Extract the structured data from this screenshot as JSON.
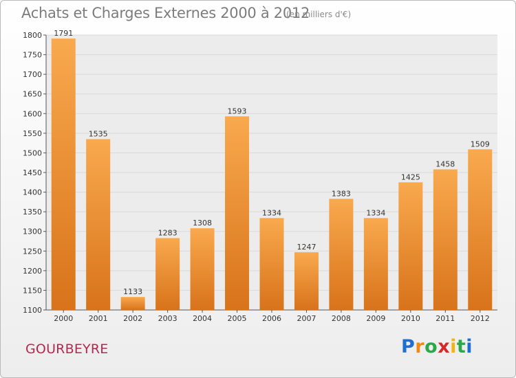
{
  "header": {
    "title": "Achats et Charges Externes 2000 à 2012",
    "subtitle": "(en milliers d'€)"
  },
  "location": "GOURBEYRE",
  "logo": {
    "text": "Proxiti",
    "letter_colors": [
      "#1f6fd1",
      "#f08a12",
      "#2aa84a",
      "#d62828",
      "#f0b514",
      "#2aa84a",
      "#1f6fd1"
    ]
  },
  "colors": {
    "bar_light": "#f9a94e",
    "bar_dark": "#d8731a",
    "grid": "#d9d9d9",
    "axis": "#555555"
  },
  "chart_data": {
    "type": "bar",
    "title": "Achats et Charges Externes 2000 à 2012",
    "subtitle": "(en milliers d'€)",
    "categories": [
      "2000",
      "2001",
      "2002",
      "2003",
      "2004",
      "2005",
      "2006",
      "2007",
      "2008",
      "2009",
      "2010",
      "2011",
      "2012"
    ],
    "values": [
      1791,
      1535,
      1133,
      1283,
      1308,
      1593,
      1334,
      1247,
      1383,
      1334,
      1425,
      1458,
      1509
    ],
    "xlabel": "",
    "ylabel": "",
    "ylim": [
      1100,
      1800
    ],
    "yticks": [
      1100,
      1150,
      1200,
      1250,
      1300,
      1350,
      1400,
      1450,
      1500,
      1550,
      1600,
      1650,
      1700,
      1750,
      1800
    ],
    "grid": true,
    "legend": "none"
  }
}
